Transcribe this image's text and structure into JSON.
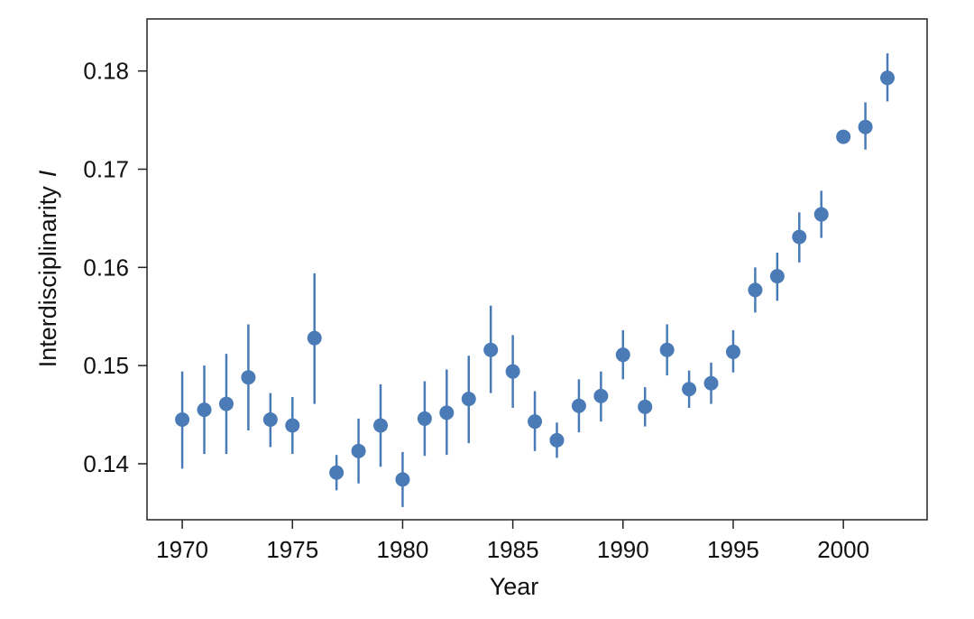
{
  "chart_data": {
    "type": "scatter",
    "title": "",
    "xlabel": "Year",
    "ylabel": "Interdisciplinarity",
    "ylabel_variable": "I",
    "xlim": [
      1968.4,
      2003.8
    ],
    "ylim": [
      0.1343,
      0.1853
    ],
    "x_ticks": [
      1970,
      1975,
      1980,
      1985,
      1990,
      1995,
      2000
    ],
    "y_ticks": [
      0.14,
      0.15,
      0.16,
      0.17,
      0.18
    ],
    "grid": false,
    "legend": "none",
    "colors": {
      "marker": "#4a7bb7",
      "axis": "#222222"
    },
    "series": [
      {
        "x": [
          1970,
          1971,
          1972,
          1973,
          1974,
          1975,
          1976,
          1977,
          1978,
          1979,
          1980,
          1981,
          1982,
          1983,
          1984,
          1985,
          1986,
          1987,
          1988,
          1989,
          1990,
          1991,
          1992,
          1993,
          1994,
          1995,
          1996,
          1997,
          1998,
          1999,
          2000,
          2001,
          2002
        ],
        "y": [
          0.1445,
          0.1455,
          0.1461,
          0.1488,
          0.1445,
          0.1439,
          0.1528,
          0.1391,
          0.1413,
          0.1439,
          0.1384,
          0.1446,
          0.1452,
          0.1466,
          0.1516,
          0.1494,
          0.1443,
          0.1424,
          0.1459,
          0.1469,
          0.1511,
          0.1458,
          0.1516,
          0.1476,
          0.1482,
          0.1514,
          0.1577,
          0.1591,
          0.1631,
          0.1654,
          0.1733,
          0.1743,
          0.1793
        ],
        "y_low": [
          0.1395,
          0.141,
          0.141,
          0.1434,
          0.1417,
          0.141,
          0.1461,
          0.1373,
          0.138,
          0.1397,
          0.1356,
          0.1408,
          0.1409,
          0.1421,
          0.1472,
          0.1457,
          0.1413,
          0.1406,
          0.1432,
          0.1443,
          0.1486,
          0.1438,
          0.149,
          0.1457,
          0.1461,
          0.1493,
          0.1554,
          0.1566,
          0.1605,
          0.163,
          0.1733,
          0.172,
          0.1769
        ],
        "y_high": [
          0.1494,
          0.15,
          0.1512,
          0.1542,
          0.1472,
          0.1468,
          0.1594,
          0.1409,
          0.1446,
          0.1481,
          0.1412,
          0.1484,
          0.1496,
          0.151,
          0.1561,
          0.1531,
          0.1474,
          0.1442,
          0.1486,
          0.1494,
          0.1536,
          0.1478,
          0.1542,
          0.1495,
          0.1503,
          0.1536,
          0.16,
          0.1615,
          0.1656,
          0.1678,
          0.1733,
          0.1768,
          0.1818
        ]
      }
    ]
  }
}
